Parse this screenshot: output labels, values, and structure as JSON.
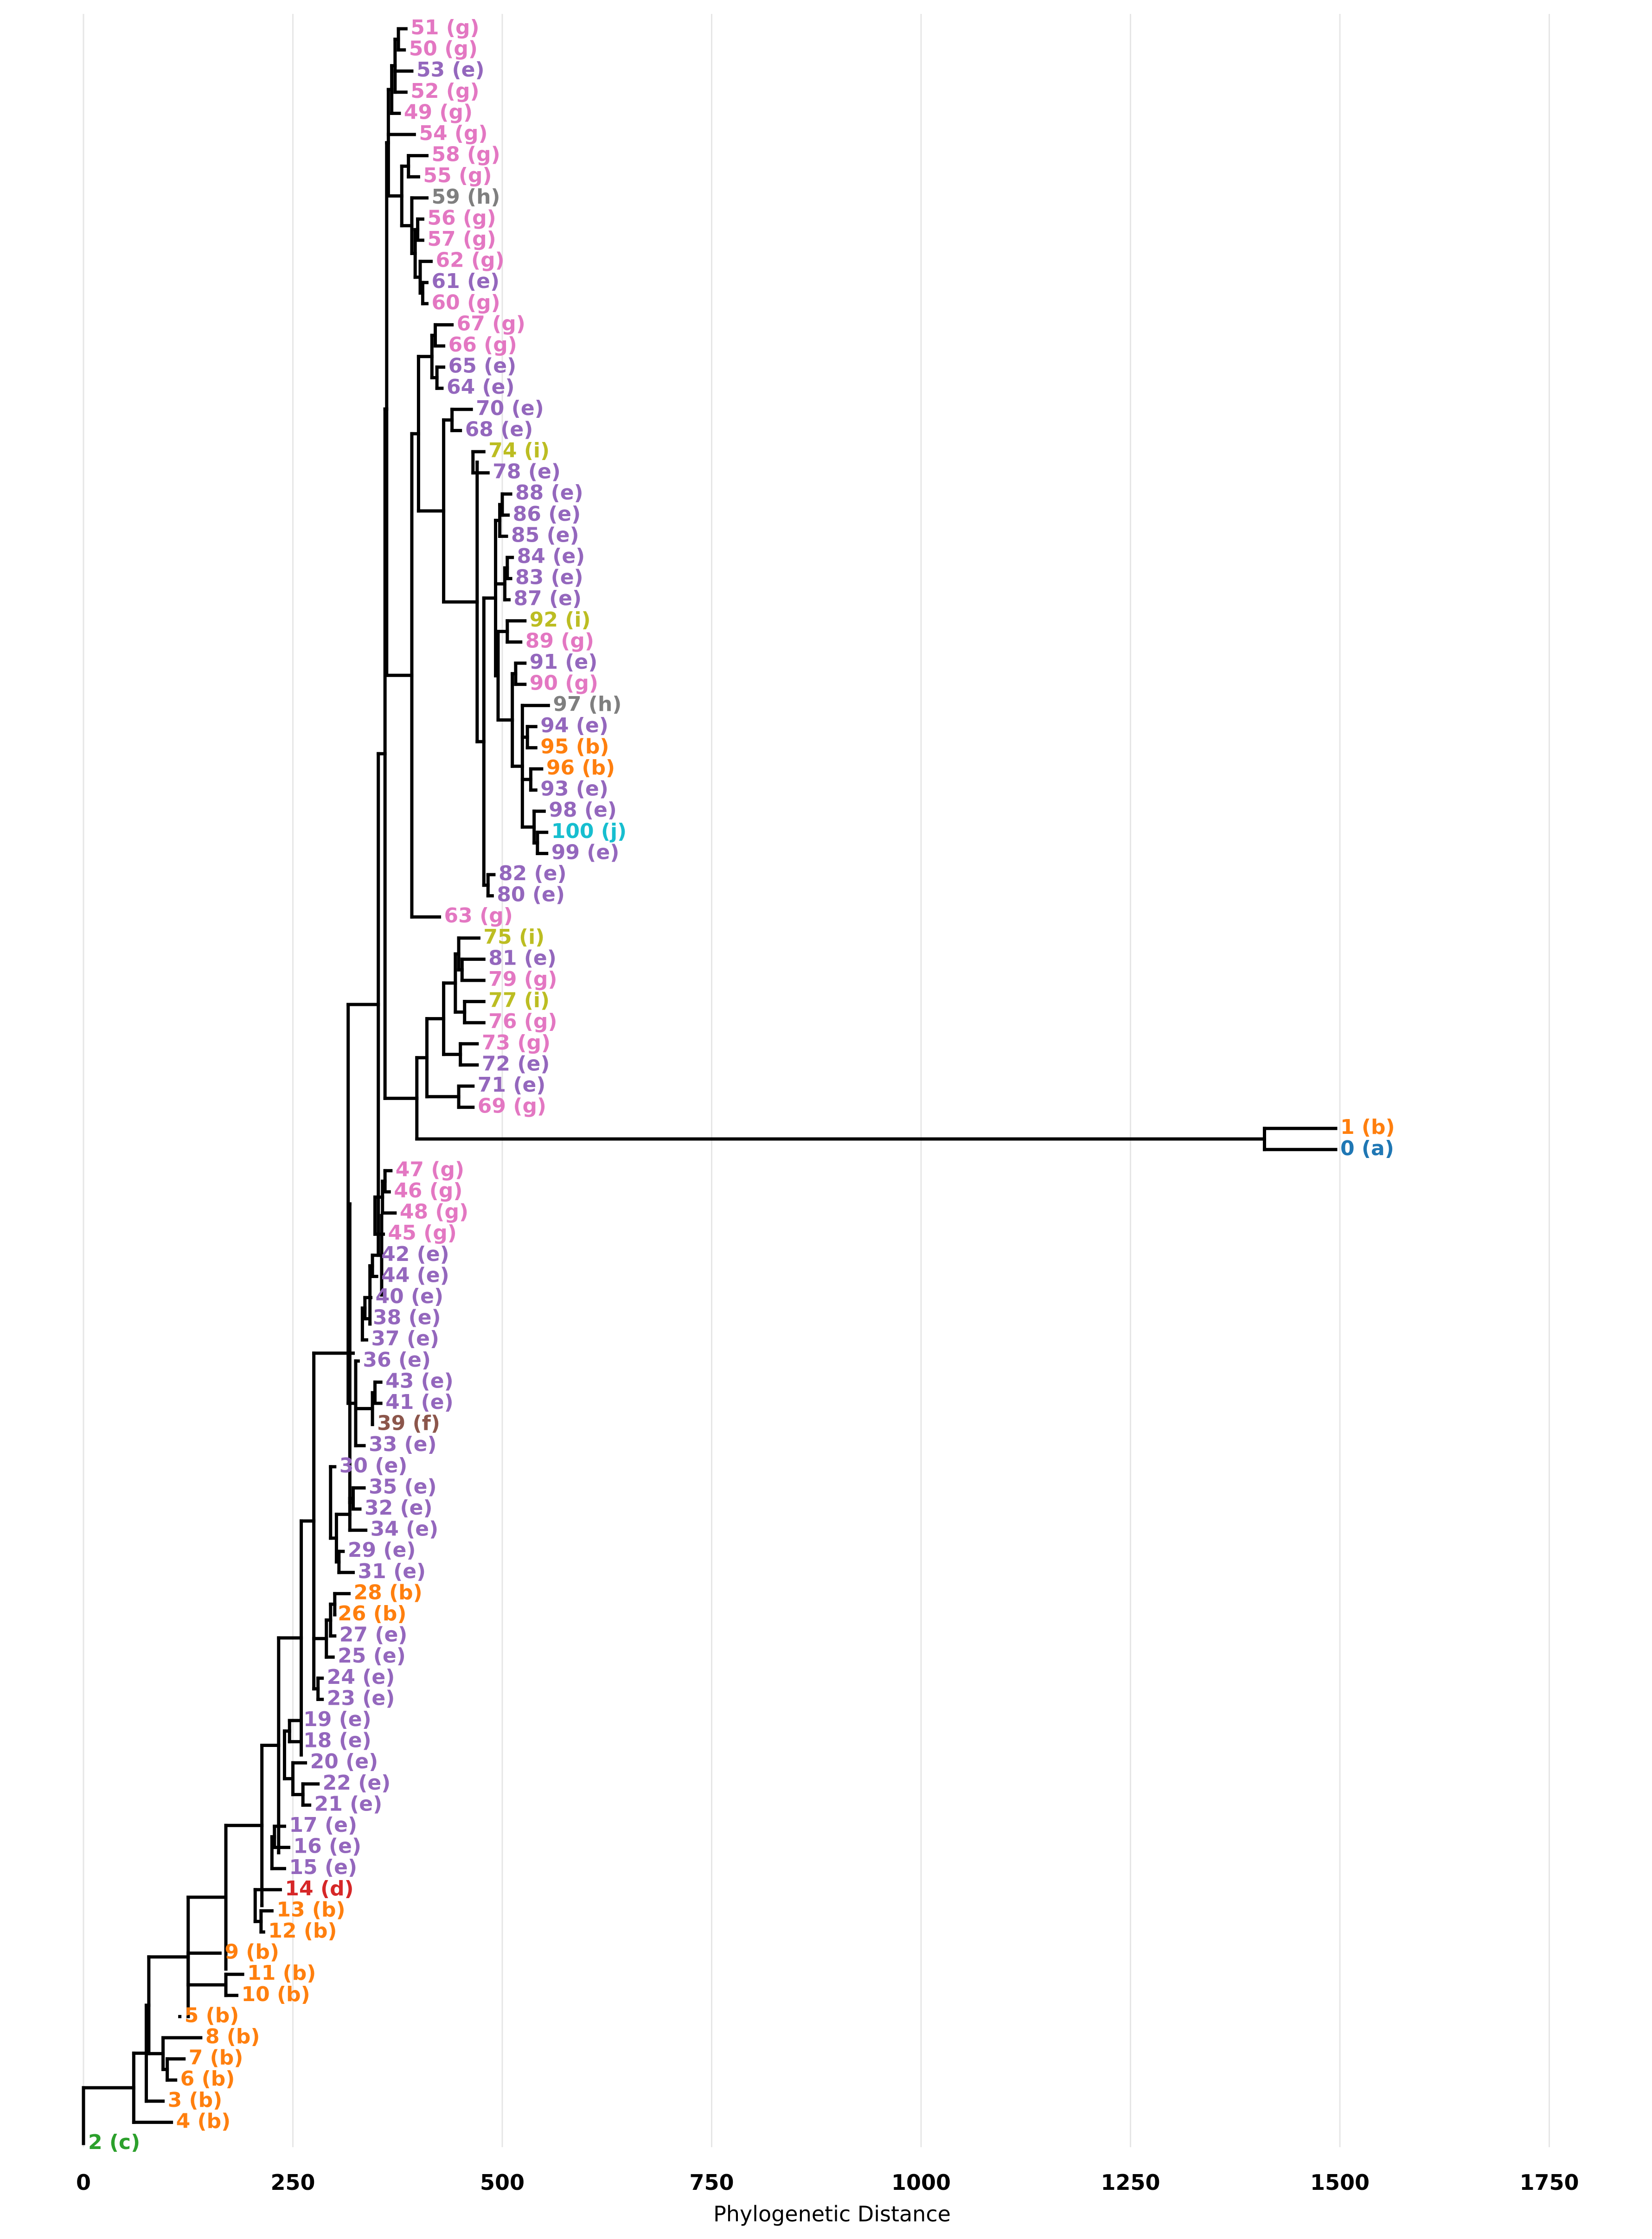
{
  "chart_data": {
    "type": "phylogenetic-tree",
    "xlabel": "Phylogenetic Distance",
    "xlim": [
      0,
      1800
    ],
    "xticks": [
      0,
      250,
      500,
      750,
      1000,
      1250,
      1500,
      1750
    ],
    "grid": true,
    "group_colors": {
      "a": "#1f77b4",
      "b": "#ff7f0e",
      "c": "#2ca02c",
      "d": "#d62728",
      "e": "#9467bd",
      "f": "#8c564b",
      "g": "#e377c2",
      "h": "#7f7f7f",
      "i": "#bcbd22",
      "j": "#17becf"
    },
    "leaves": [
      {
        "label": "51 (g)",
        "group": "g",
        "dist": 385
      },
      {
        "label": "50 (g)",
        "group": "g",
        "dist": 383
      },
      {
        "label": "53 (e)",
        "group": "e",
        "dist": 392
      },
      {
        "label": "52 (g)",
        "group": "g",
        "dist": 385
      },
      {
        "label": "49 (g)",
        "group": "g",
        "dist": 377
      },
      {
        "label": "54 (g)",
        "group": "g",
        "dist": 395
      },
      {
        "label": "58 (g)",
        "group": "g",
        "dist": 410
      },
      {
        "label": "55 (g)",
        "group": "g",
        "dist": 400
      },
      {
        "label": "59 (h)",
        "group": "h",
        "dist": 410
      },
      {
        "label": "56 (g)",
        "group": "g",
        "dist": 405
      },
      {
        "label": "57 (g)",
        "group": "g",
        "dist": 405
      },
      {
        "label": "62 (g)",
        "group": "g",
        "dist": 415
      },
      {
        "label": "61 (e)",
        "group": "e",
        "dist": 410
      },
      {
        "label": "60 (g)",
        "group": "g",
        "dist": 410
      },
      {
        "label": "67 (g)",
        "group": "g",
        "dist": 440
      },
      {
        "label": "66 (g)",
        "group": "g",
        "dist": 430
      },
      {
        "label": "65 (e)",
        "group": "e",
        "dist": 430
      },
      {
        "label": "64 (e)",
        "group": "e",
        "dist": 428
      },
      {
        "label": "70 (e)",
        "group": "e",
        "dist": 463
      },
      {
        "label": "68 (e)",
        "group": "e",
        "dist": 450
      },
      {
        "label": "74 (i)",
        "group": "i",
        "dist": 478
      },
      {
        "label": "78 (e)",
        "group": "e",
        "dist": 483
      },
      {
        "label": "88 (e)",
        "group": "e",
        "dist": 510
      },
      {
        "label": "86 (e)",
        "group": "e",
        "dist": 507
      },
      {
        "label": "85 (e)",
        "group": "e",
        "dist": 505
      },
      {
        "label": "84 (e)",
        "group": "e",
        "dist": 512
      },
      {
        "label": "83 (e)",
        "group": "e",
        "dist": 510
      },
      {
        "label": "87 (e)",
        "group": "e",
        "dist": 508
      },
      {
        "label": "92 (i)",
        "group": "i",
        "dist": 527
      },
      {
        "label": "89 (g)",
        "group": "g",
        "dist": 522
      },
      {
        "label": "91 (e)",
        "group": "e",
        "dist": 527
      },
      {
        "label": "90 (g)",
        "group": "g",
        "dist": 527
      },
      {
        "label": "97 (h)",
        "group": "h",
        "dist": 555
      },
      {
        "label": "94 (e)",
        "group": "e",
        "dist": 540
      },
      {
        "label": "95 (b)",
        "group": "b",
        "dist": 540
      },
      {
        "label": "96 (b)",
        "group": "b",
        "dist": 547
      },
      {
        "label": "93 (e)",
        "group": "e",
        "dist": 540
      },
      {
        "label": "98 (e)",
        "group": "e",
        "dist": 550
      },
      {
        "label": "100 (j)",
        "group": "j",
        "dist": 553
      },
      {
        "label": "99 (e)",
        "group": "e",
        "dist": 553
      },
      {
        "label": "82 (e)",
        "group": "e",
        "dist": 490
      },
      {
        "label": "80 (e)",
        "group": "e",
        "dist": 488
      },
      {
        "label": "63 (g)",
        "group": "g",
        "dist": 425
      },
      {
        "label": "75 (i)",
        "group": "i",
        "dist": 472
      },
      {
        "label": "81 (e)",
        "group": "e",
        "dist": 478
      },
      {
        "label": "79 (g)",
        "group": "g",
        "dist": 478
      },
      {
        "label": "77 (i)",
        "group": "i",
        "dist": 478
      },
      {
        "label": "76 (g)",
        "group": "g",
        "dist": 478
      },
      {
        "label": "73 (g)",
        "group": "g",
        "dist": 470
      },
      {
        "label": "72 (e)",
        "group": "e",
        "dist": 470
      },
      {
        "label": "71 (e)",
        "group": "e",
        "dist": 465
      },
      {
        "label": "69 (g)",
        "group": "g",
        "dist": 465
      },
      {
        "label": "1 (b)",
        "group": "b",
        "dist": 1495
      },
      {
        "label": "0 (a)",
        "group": "a",
        "dist": 1495
      },
      {
        "label": "47 (g)",
        "group": "g",
        "dist": 367
      },
      {
        "label": "46 (g)",
        "group": "g",
        "dist": 365
      },
      {
        "label": "48 (g)",
        "group": "g",
        "dist": 372
      },
      {
        "label": "45 (g)",
        "group": "g",
        "dist": 358
      },
      {
        "label": "42 (e)",
        "group": "e",
        "dist": 350
      },
      {
        "label": "44 (e)",
        "group": "e",
        "dist": 350
      },
      {
        "label": "40 (e)",
        "group": "e",
        "dist": 343
      },
      {
        "label": "38 (e)",
        "group": "e",
        "dist": 340
      },
      {
        "label": "37 (e)",
        "group": "e",
        "dist": 338
      },
      {
        "label": "36 (e)",
        "group": "e",
        "dist": 328
      },
      {
        "label": "43 (e)",
        "group": "e",
        "dist": 355
      },
      {
        "label": "41 (e)",
        "group": "e",
        "dist": 355
      },
      {
        "label": "39 (f)",
        "group": "f",
        "dist": 345
      },
      {
        "label": "33 (e)",
        "group": "e",
        "dist": 335
      },
      {
        "label": "30 (e)",
        "group": "e",
        "dist": 300
      },
      {
        "label": "35 (e)",
        "group": "e",
        "dist": 335
      },
      {
        "label": "32 (e)",
        "group": "e",
        "dist": 330
      },
      {
        "label": "34 (e)",
        "group": "e",
        "dist": 337
      },
      {
        "label": "29 (e)",
        "group": "e",
        "dist": 310
      },
      {
        "label": "31 (e)",
        "group": "e",
        "dist": 322
      },
      {
        "label": "28 (b)",
        "group": "b",
        "dist": 317
      },
      {
        "label": "26 (b)",
        "group": "b",
        "dist": 298
      },
      {
        "label": "27 (e)",
        "group": "e",
        "dist": 300
      },
      {
        "label": "25 (e)",
        "group": "e",
        "dist": 298
      },
      {
        "label": "24 (e)",
        "group": "e",
        "dist": 285
      },
      {
        "label": "23 (e)",
        "group": "e",
        "dist": 285
      },
      {
        "label": "19 (e)",
        "group": "e",
        "dist": 257
      },
      {
        "label": "18 (e)",
        "group": "e",
        "dist": 257
      },
      {
        "label": "20 (e)",
        "group": "e",
        "dist": 265
      },
      {
        "label": "22 (e)",
        "group": "e",
        "dist": 280
      },
      {
        "label": "21 (e)",
        "group": "e",
        "dist": 270
      },
      {
        "label": "17 (e)",
        "group": "e",
        "dist": 240
      },
      {
        "label": "16 (e)",
        "group": "e",
        "dist": 245
      },
      {
        "label": "15 (e)",
        "group": "e",
        "dist": 240
      },
      {
        "label": "14 (d)",
        "group": "d",
        "dist": 235
      },
      {
        "label": "13 (b)",
        "group": "b",
        "dist": 225
      },
      {
        "label": "12 (b)",
        "group": "b",
        "dist": 215
      },
      {
        "label": "9 (b)",
        "group": "b",
        "dist": 163
      },
      {
        "label": "11 (b)",
        "group": "b",
        "dist": 190
      },
      {
        "label": "10 (b)",
        "group": "b",
        "dist": 183
      },
      {
        "label": "5 (b)",
        "group": "b",
        "dist": 115
      },
      {
        "label": "8 (b)",
        "group": "b",
        "dist": 140
      },
      {
        "label": "7 (b)",
        "group": "b",
        "dist": 120
      },
      {
        "label": "6 (b)",
        "group": "b",
        "dist": 110
      },
      {
        "label": "3 (b)",
        "group": "b",
        "dist": 95
      },
      {
        "label": "4 (b)",
        "group": "b",
        "dist": 105
      },
      {
        "label": "2 (c)",
        "group": "c",
        "dist": 0
      }
    ]
  }
}
